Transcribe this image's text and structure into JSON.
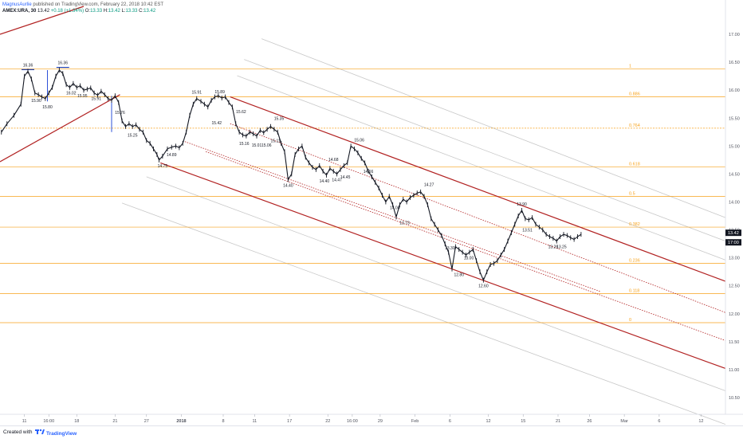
{
  "header": {
    "author": "MagnusAurlie",
    "published": " published on TradingView.com, February 22, 2018 10:42 EST",
    "symbol": "AMEX:URA, 30",
    "quote_parts": [
      {
        "text": "13.42",
        "tone": "normal"
      },
      {
        "text": "+0.18 (+1.34%)",
        "tone": "up"
      },
      {
        "text": "O:",
        "tone": "normal"
      },
      {
        "text": "13.33",
        "tone": "up"
      },
      {
        "text": "H:",
        "tone": "normal"
      },
      {
        "text": "13.42",
        "tone": "up"
      },
      {
        "text": "L:",
        "tone": "normal"
      },
      {
        "text": "13.33",
        "tone": "up"
      },
      {
        "text": "C:",
        "tone": "normal"
      },
      {
        "text": "13.42",
        "tone": "up"
      }
    ]
  },
  "footer": {
    "created_with": "Created with",
    "brand": "TradingView"
  },
  "colors": {
    "price": "#131722",
    "fib": "#f7a21b",
    "channel": "#b22222",
    "fan_gray": "#c8c8c8",
    "marker": "#1e3fae",
    "axis_text": "#50535e",
    "price_tag": "#131722"
  },
  "chart_data": {
    "type": "line",
    "x_axis": {
      "range": [
        0,
        104
      ],
      "ticks": [
        {
          "x": 3.5,
          "label": "11"
        },
        {
          "x": 7,
          "label": "16:00"
        },
        {
          "x": 11,
          "label": "18"
        },
        {
          "x": 16.5,
          "label": "21"
        },
        {
          "x": 21,
          "label": "27"
        },
        {
          "x": 26,
          "label": "2018"
        },
        {
          "x": 32,
          "label": "8"
        },
        {
          "x": 36.5,
          "label": "11"
        },
        {
          "x": 41.5,
          "label": "17"
        },
        {
          "x": 47,
          "label": "22"
        },
        {
          "x": 50.5,
          "label": "16:00"
        },
        {
          "x": 54.5,
          "label": "29"
        },
        {
          "x": 59.5,
          "label": "Feb"
        },
        {
          "x": 64.5,
          "label": "6"
        },
        {
          "x": 70,
          "label": "12"
        },
        {
          "x": 75,
          "label": "15"
        },
        {
          "x": 80,
          "label": "21"
        },
        {
          "x": 84.5,
          "label": "26"
        },
        {
          "x": 89.5,
          "label": "Mar"
        },
        {
          "x": 94.5,
          "label": "6"
        },
        {
          "x": 100.5,
          "label": "12"
        }
      ]
    },
    "y_axis": {
      "range": [
        10.2,
        17.5
      ],
      "ticks": [
        {
          "y": 17.0,
          "label": "17.00"
        },
        {
          "y": 16.5,
          "label": "16.50"
        },
        {
          "y": 16.0,
          "label": "16.00"
        },
        {
          "y": 15.5,
          "label": "15.50"
        },
        {
          "y": 15.0,
          "label": "15.00"
        },
        {
          "y": 14.5,
          "label": "14.50"
        },
        {
          "y": 14.0,
          "label": "14.00"
        },
        {
          "y": 13.5,
          "label": "13.50"
        },
        {
          "y": 13.0,
          "label": "13.00"
        },
        {
          "y": 12.5,
          "label": "12.50"
        },
        {
          "y": 12.0,
          "label": "12.00"
        },
        {
          "y": 11.5,
          "label": "11.50"
        },
        {
          "y": 11.0,
          "label": "11.00"
        },
        {
          "y": 10.5,
          "label": "10.50"
        }
      ],
      "price_tags": [
        {
          "y": 13.42,
          "label": "13.42"
        },
        {
          "y": 13.32,
          "label": "17:00"
        }
      ]
    },
    "price_series": [
      [
        0.2,
        15.25
      ],
      [
        1.0,
        15.4
      ],
      [
        2.0,
        15.55
      ],
      [
        3.0,
        15.75
      ],
      [
        3.5,
        16.25
      ],
      [
        4.0,
        16.34
      ],
      [
        4.5,
        16.2
      ],
      [
        5.0,
        15.95
      ],
      [
        5.5,
        15.92
      ],
      [
        6.0,
        15.88
      ],
      [
        6.5,
        15.85
      ],
      [
        7.0,
        15.95
      ],
      [
        7.5,
        16.05
      ],
      [
        8.0,
        16.25
      ],
      [
        8.5,
        16.36
      ],
      [
        9.0,
        16.3
      ],
      [
        9.5,
        16.1
      ],
      [
        10.0,
        16.05
      ],
      [
        10.5,
        16.12
      ],
      [
        11.0,
        16.05
      ],
      [
        11.5,
        16.08
      ],
      [
        12.0,
        16.0
      ],
      [
        12.5,
        16.02
      ],
      [
        13.0,
        16.04
      ],
      [
        13.5,
        15.95
      ],
      [
        14.0,
        15.91
      ],
      [
        14.5,
        15.98
      ],
      [
        15.0,
        15.92
      ],
      [
        15.5,
        15.85
      ],
      [
        16.0,
        15.82
      ],
      [
        16.5,
        15.9
      ],
      [
        17.0,
        15.78
      ],
      [
        17.5,
        15.45
      ],
      [
        18.0,
        15.35
      ],
      [
        18.5,
        15.4
      ],
      [
        19.0,
        15.35
      ],
      [
        19.5,
        15.38
      ],
      [
        20.0,
        15.3
      ],
      [
        20.5,
        15.25
      ],
      [
        21.0,
        15.1
      ],
      [
        21.5,
        15.05
      ],
      [
        22.0,
        14.95
      ],
      [
        22.5,
        14.85
      ],
      [
        22.8,
        14.75
      ],
      [
        23.3,
        14.82
      ],
      [
        24.0,
        14.95
      ],
      [
        24.6,
        14.98
      ],
      [
        25.2,
        15.0
      ],
      [
        25.7,
        14.97
      ],
      [
        26.2,
        15.05
      ],
      [
        26.7,
        15.25
      ],
      [
        27.2,
        15.55
      ],
      [
        27.7,
        15.75
      ],
      [
        28.2,
        15.85
      ],
      [
        28.8,
        15.8
      ],
      [
        29.3,
        15.75
      ],
      [
        29.8,
        15.7
      ],
      [
        30.3,
        15.82
      ],
      [
        30.8,
        15.88
      ],
      [
        31.3,
        15.9
      ],
      [
        31.8,
        15.86
      ],
      [
        32.3,
        15.88
      ],
      [
        32.8,
        15.78
      ],
      [
        33.3,
        15.7
      ],
      [
        33.8,
        15.4
      ],
      [
        34.3,
        15.25
      ],
      [
        34.8,
        15.2
      ],
      [
        35.3,
        15.18
      ],
      [
        35.8,
        15.25
      ],
      [
        36.3,
        15.22
      ],
      [
        36.8,
        15.18
      ],
      [
        37.3,
        15.28
      ],
      [
        37.8,
        15.24
      ],
      [
        38.3,
        15.3
      ],
      [
        38.8,
        15.35
      ],
      [
        39.3,
        15.3
      ],
      [
        39.8,
        15.25
      ],
      [
        40.3,
        15.05
      ],
      [
        40.8,
        14.9
      ],
      [
        41.3,
        14.4
      ],
      [
        41.8,
        14.5
      ],
      [
        42.3,
        14.85
      ],
      [
        42.8,
        14.95
      ],
      [
        43.3,
        15.0
      ],
      [
        43.8,
        14.8
      ],
      [
        44.3,
        14.7
      ],
      [
        44.8,
        14.62
      ],
      [
        45.3,
        14.58
      ],
      [
        45.8,
        14.65
      ],
      [
        46.3,
        14.55
      ],
      [
        46.8,
        14.48
      ],
      [
        47.3,
        14.6
      ],
      [
        47.8,
        14.55
      ],
      [
        48.3,
        14.5
      ],
      [
        48.8,
        14.58
      ],
      [
        49.3,
        14.65
      ],
      [
        49.8,
        14.7
      ],
      [
        50.3,
        15.0
      ],
      [
        50.8,
        14.95
      ],
      [
        51.3,
        14.88
      ],
      [
        51.8,
        14.78
      ],
      [
        52.3,
        14.7
      ],
      [
        52.8,
        14.55
      ],
      [
        53.3,
        14.45
      ],
      [
        53.8,
        14.35
      ],
      [
        54.3,
        14.25
      ],
      [
        54.8,
        14.12
      ],
      [
        55.3,
        14.0
      ],
      [
        55.8,
        14.1
      ],
      [
        56.3,
        13.95
      ],
      [
        56.8,
        13.73
      ],
      [
        57.3,
        13.95
      ],
      [
        57.8,
        14.05
      ],
      [
        58.3,
        14.0
      ],
      [
        58.8,
        14.08
      ],
      [
        59.3,
        14.12
      ],
      [
        59.8,
        14.16
      ],
      [
        60.3,
        14.18
      ],
      [
        60.8,
        14.1
      ],
      [
        61.3,
        13.95
      ],
      [
        61.8,
        13.7
      ],
      [
        62.3,
        13.6
      ],
      [
        62.8,
        13.5
      ],
      [
        63.3,
        13.4
      ],
      [
        63.8,
        13.25
      ],
      [
        64.3,
        13.1
      ],
      [
        64.8,
        12.8
      ],
      [
        65.3,
        13.2
      ],
      [
        65.8,
        13.15
      ],
      [
        66.3,
        13.1
      ],
      [
        66.8,
        13.05
      ],
      [
        67.3,
        13.1
      ],
      [
        67.8,
        13.15
      ],
      [
        68.3,
        12.95
      ],
      [
        68.8,
        12.75
      ],
      [
        69.3,
        12.6
      ],
      [
        69.8,
        12.75
      ],
      [
        70.3,
        12.88
      ],
      [
        70.8,
        12.9
      ],
      [
        71.3,
        12.95
      ],
      [
        71.8,
        13.05
      ],
      [
        72.3,
        13.15
      ],
      [
        72.8,
        13.3
      ],
      [
        73.3,
        13.45
      ],
      [
        73.8,
        13.6
      ],
      [
        74.3,
        13.75
      ],
      [
        74.8,
        13.85
      ],
      [
        75.3,
        13.7
      ],
      [
        75.8,
        13.68
      ],
      [
        76.3,
        13.72
      ],
      [
        76.8,
        13.6
      ],
      [
        77.3,
        13.55
      ],
      [
        77.8,
        13.5
      ],
      [
        78.3,
        13.42
      ],
      [
        78.8,
        13.38
      ],
      [
        79.3,
        13.35
      ],
      [
        79.8,
        13.3
      ],
      [
        80.3,
        13.38
      ],
      [
        80.8,
        13.42
      ],
      [
        81.3,
        13.4
      ],
      [
        81.8,
        13.36
      ],
      [
        82.3,
        13.33
      ],
      [
        82.8,
        13.38
      ],
      [
        83.3,
        13.42
      ]
    ],
    "fib_levels": [
      {
        "y": 16.38,
        "label": "1"
      },
      {
        "y": 15.88,
        "label": "0.886"
      },
      {
        "y": 15.32,
        "label": "0.764"
      },
      {
        "y": 14.63,
        "label": "0.618"
      },
      {
        "y": 14.1,
        "label": "0.5"
      },
      {
        "y": 13.55,
        "label": "0.382"
      },
      {
        "y": 12.9,
        "label": "0.236"
      },
      {
        "y": 12.36,
        "label": "0.118"
      },
      {
        "y": 11.84,
        "label": "0"
      }
    ],
    "channel_lines": [
      {
        "from": [
          33.0,
          15.88
        ],
        "to": [
          104.0,
          12.58
        ],
        "style": "solid"
      },
      {
        "from": [
          23.0,
          14.7
        ],
        "to": [
          104.0,
          11.02
        ],
        "style": "solid"
      },
      {
        "from": [
          33.0,
          15.4
        ],
        "to": [
          104.0,
          12.02
        ],
        "style": "dotted"
      },
      {
        "from": [
          29.5,
          14.9
        ],
        "to": [
          104.0,
          11.52
        ],
        "style": "dotted"
      },
      {
        "from": [
          26.5,
          15.08
        ],
        "to": [
          86.0,
          12.4
        ],
        "style": "dotted"
      },
      {
        "from": [
          0.0,
          17.0
        ],
        "to": [
          12.0,
          17.5
        ],
        "style": "solid"
      },
      {
        "from": [
          0.0,
          14.72
        ],
        "to": [
          17.2,
          15.92
        ],
        "style": "solid"
      }
    ],
    "fan_lines": [
      {
        "from": [
          37.5,
          16.92
        ],
        "to": [
          104.0,
          13.72
        ]
      },
      {
        "from": [
          35.0,
          16.55
        ],
        "to": [
          104.0,
          13.3
        ]
      },
      {
        "from": [
          34.0,
          16.26
        ],
        "to": [
          104.0,
          12.96
        ]
      },
      {
        "from": [
          21.0,
          14.45
        ],
        "to": [
          104.0,
          10.62
        ]
      },
      {
        "from": [
          17.5,
          13.98
        ],
        "to": [
          104.0,
          10.02
        ]
      }
    ],
    "markers": [
      {
        "x": 4.0,
        "y_top": 16.34,
        "y_bottom": 16.34,
        "kind": "flat"
      },
      {
        "x": 9.0,
        "y_top": 16.38,
        "y_bottom": 16.38,
        "kind": "flat"
      },
      {
        "x": 6.8,
        "y_top": 16.36,
        "y_bottom": 15.8,
        "kind": "vertical"
      },
      {
        "x": 16.0,
        "y_top": 15.9,
        "y_bottom": 15.25,
        "kind": "vertical"
      }
    ],
    "annotations": [
      {
        "x": 4.0,
        "y": 16.34,
        "text": "16.36",
        "pos": "above"
      },
      {
        "x": 9.0,
        "y": 16.38,
        "text": "16.36",
        "pos": "above"
      },
      {
        "x": 5.2,
        "y": 15.92,
        "text": "15.90",
        "pos": "below"
      },
      {
        "x": 6.8,
        "y": 15.8,
        "text": "15.80",
        "pos": "below"
      },
      {
        "x": 10.2,
        "y": 16.05,
        "text": "16.02",
        "pos": "below"
      },
      {
        "x": 11.8,
        "y": 16.0,
        "text": "15.95",
        "pos": "below"
      },
      {
        "x": 13.8,
        "y": 15.95,
        "text": "15.91",
        "pos": "below"
      },
      {
        "x": 17.2,
        "y": 15.7,
        "text": "15.76",
        "pos": "below"
      },
      {
        "x": 19.0,
        "y": 15.3,
        "text": "15.25",
        "pos": "below"
      },
      {
        "x": 23.3,
        "y": 14.75,
        "text": "14.75",
        "pos": "below"
      },
      {
        "x": 24.6,
        "y": 14.95,
        "text": "14.89",
        "pos": "below"
      },
      {
        "x": 28.2,
        "y": 15.85,
        "text": "15.91",
        "pos": "above"
      },
      {
        "x": 31.5,
        "y": 15.86,
        "text": "15.89",
        "pos": "above"
      },
      {
        "x": 30.0,
        "y": 15.42,
        "text": "15.42",
        "pos": "right"
      },
      {
        "x": 33.5,
        "y": 15.62,
        "text": "15.62",
        "pos": "right"
      },
      {
        "x": 40.0,
        "y": 15.38,
        "text": "15.35",
        "pos": "above"
      },
      {
        "x": 35.0,
        "y": 15.15,
        "text": "15.16",
        "pos": "below"
      },
      {
        "x": 36.8,
        "y": 15.12,
        "text": "15.01",
        "pos": "below"
      },
      {
        "x": 38.2,
        "y": 15.12,
        "text": "15.06",
        "pos": "below"
      },
      {
        "x": 39.5,
        "y": 15.2,
        "text": "15.11",
        "pos": "below"
      },
      {
        "x": 41.3,
        "y": 14.4,
        "text": "14.40",
        "pos": "below"
      },
      {
        "x": 46.5,
        "y": 14.48,
        "text": "14.40",
        "pos": "below"
      },
      {
        "x": 47.8,
        "y": 14.65,
        "text": "14.68",
        "pos": "above"
      },
      {
        "x": 48.3,
        "y": 14.5,
        "text": "14.47",
        "pos": "below"
      },
      {
        "x": 49.5,
        "y": 14.55,
        "text": "14.45",
        "pos": "below"
      },
      {
        "x": 51.5,
        "y": 15.0,
        "text": "15.06",
        "pos": "above"
      },
      {
        "x": 52.8,
        "y": 14.65,
        "text": "14.66",
        "pos": "below"
      },
      {
        "x": 61.5,
        "y": 14.2,
        "text": "14.27",
        "pos": "above"
      },
      {
        "x": 56.6,
        "y": 14.0,
        "text": "14.00",
        "pos": "below"
      },
      {
        "x": 58.0,
        "y": 13.73,
        "text": "13.73",
        "pos": "below"
      },
      {
        "x": 64.5,
        "y": 13.28,
        "text": "13.30",
        "pos": "below"
      },
      {
        "x": 67.2,
        "y": 13.1,
        "text": "13.00",
        "pos": "below"
      },
      {
        "x": 65.8,
        "y": 12.8,
        "text": "12.80",
        "pos": "below"
      },
      {
        "x": 69.3,
        "y": 12.6,
        "text": "12.60",
        "pos": "below"
      },
      {
        "x": 74.8,
        "y": 13.85,
        "text": "13.90",
        "pos": "above"
      },
      {
        "x": 75.6,
        "y": 13.6,
        "text": "13.51",
        "pos": "below"
      },
      {
        "x": 79.3,
        "y": 13.3,
        "text": "13.26",
        "pos": "below"
      },
      {
        "x": 80.5,
        "y": 13.3,
        "text": "13.25",
        "pos": "below"
      }
    ]
  }
}
